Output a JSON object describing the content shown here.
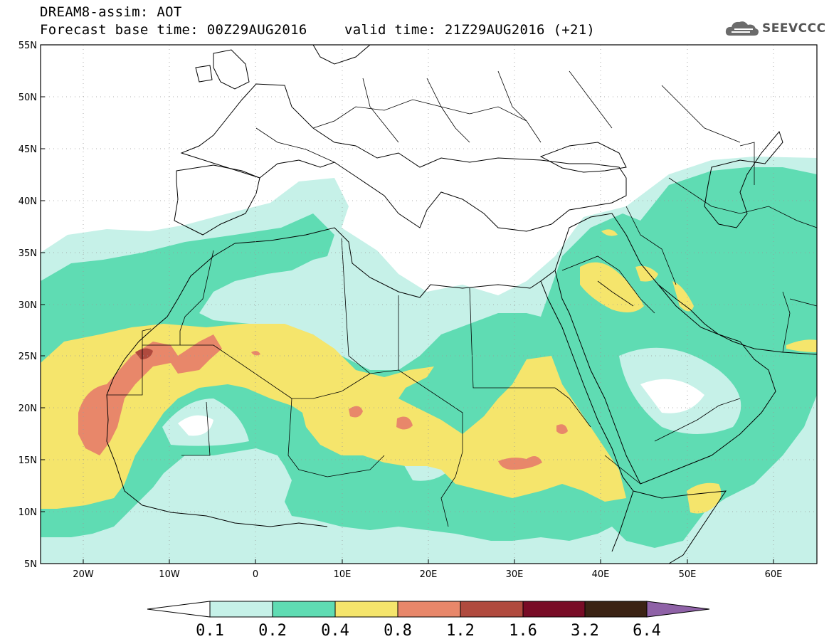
{
  "header": {
    "title": "DREAM8-assim: AOT",
    "base_time": "Forecast base time: 00Z29AUG2016",
    "valid_time": "valid time: 21Z29AUG2016 (+21)",
    "logo_text": "SEEVCCC",
    "logo_icon": "cloud-icon"
  },
  "map": {
    "lat_range": [
      "5N",
      "55N"
    ],
    "lon_range": [
      "25W",
      "65E"
    ],
    "lat_labels": [
      "55N",
      "50N",
      "45N",
      "40N",
      "35N",
      "30N",
      "25N",
      "20N",
      "15N",
      "10N",
      "5N"
    ],
    "lon_labels": [
      "20W",
      "10W",
      "0",
      "10E",
      "20E",
      "30E",
      "40E",
      "50E",
      "60E"
    ],
    "grid": true
  },
  "colorbar": {
    "labels": [
      "0.1",
      "0.2",
      "0.4",
      "0.8",
      "1.2",
      "1.6",
      "3.2",
      "6.4"
    ],
    "colors": [
      "#ffffff",
      "#c6f1e8",
      "#5fdcb3",
      "#f5e56c",
      "#e8876a",
      "#b04a3e",
      "#780c26",
      "#3b2314",
      "#8f62a7"
    ]
  },
  "colors": {
    "c1": "#c6f1e8",
    "c2": "#5fdcb3",
    "c3": "#f5e56c",
    "c4": "#e8876a",
    "c5": "#b04a3e"
  }
}
